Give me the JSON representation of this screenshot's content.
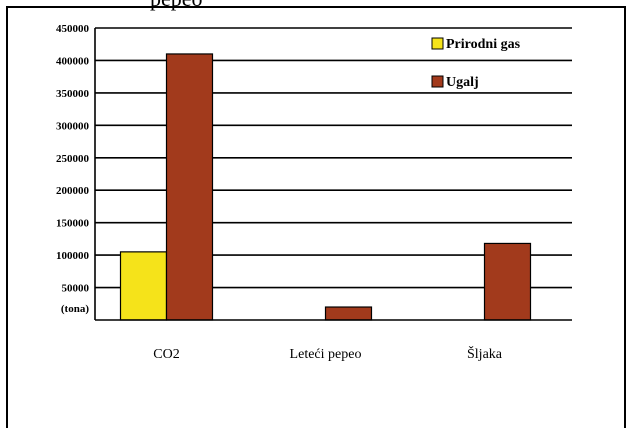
{
  "page": {
    "top_text_fragment": "pepeo"
  },
  "chart_data": {
    "type": "bar",
    "categories": [
      "CO2",
      "Leteći pepeo",
      "Šljaka"
    ],
    "series": [
      {
        "name": "Prirodni gas",
        "color": "#f5e31a",
        "values": [
          105000,
          0,
          0
        ]
      },
      {
        "name": "Ugalj",
        "color": "#a23a1c",
        "values": [
          410000,
          20000,
          118000
        ]
      }
    ],
    "yticks": [
      "450000",
      "400000",
      "350000",
      "300000",
      "250000",
      "200000",
      "150000",
      "100000",
      "50000"
    ],
    "ylim": [
      0,
      450000
    ],
    "unit_label": "(tona)",
    "grid": true,
    "legend_position": "top-right"
  }
}
